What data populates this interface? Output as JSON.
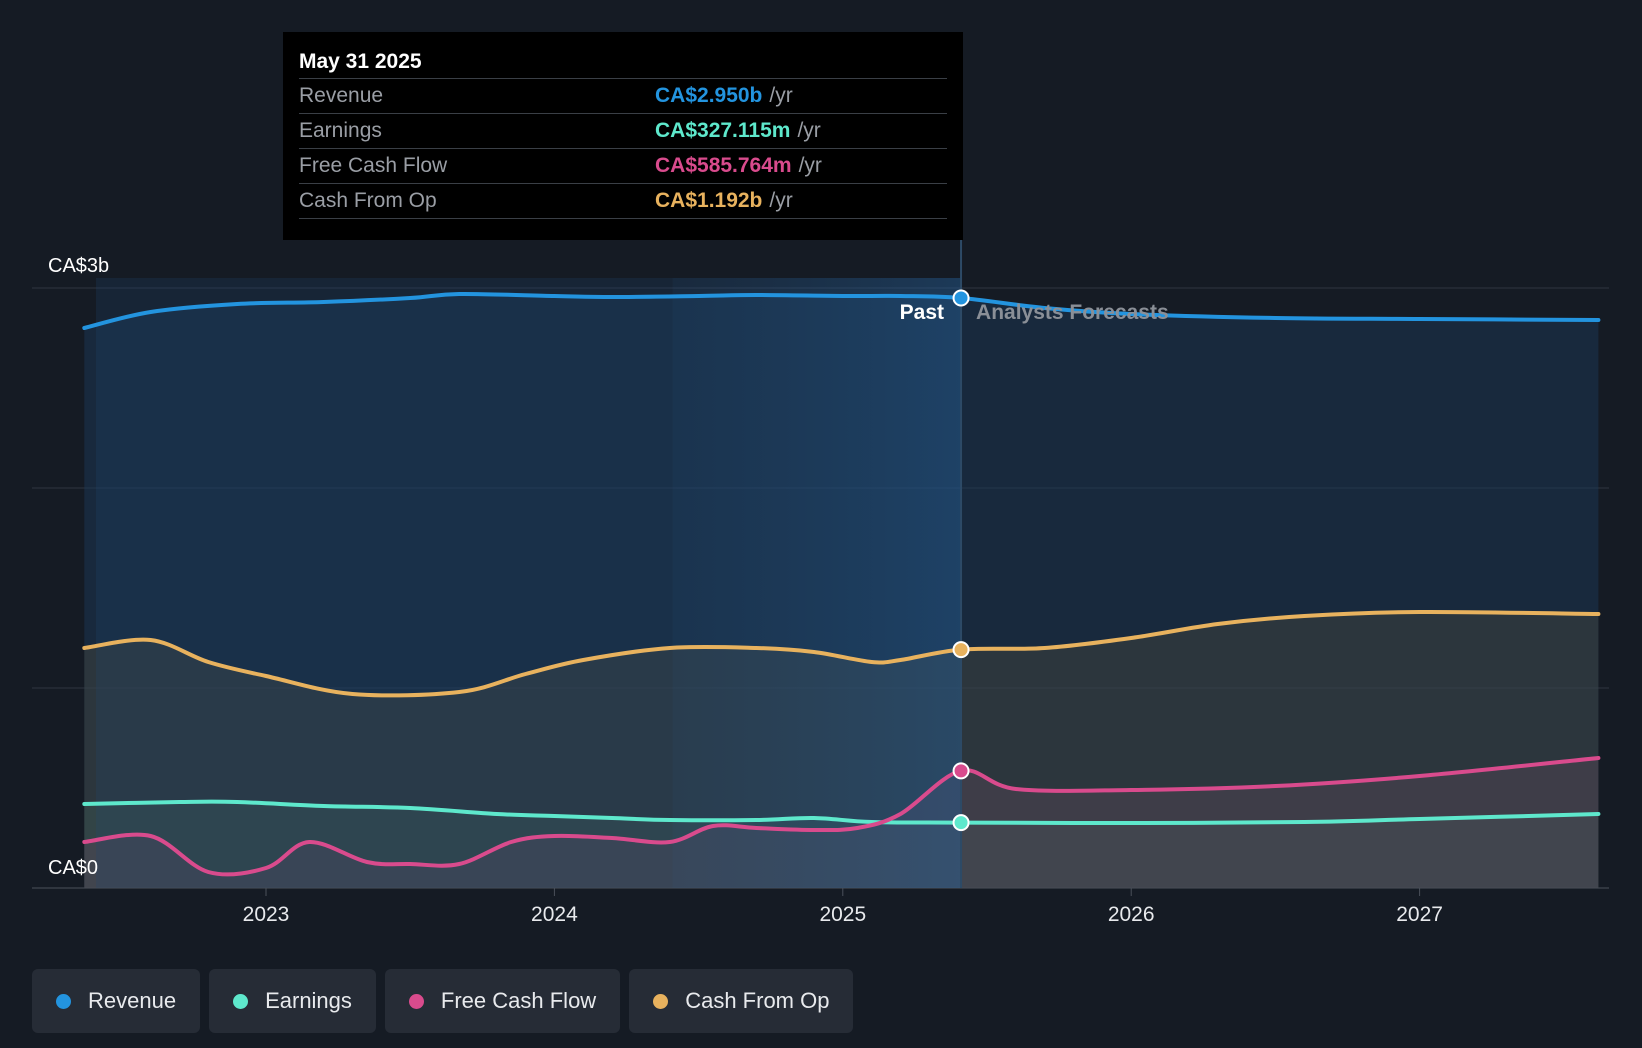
{
  "chart_data": {
    "type": "area",
    "y_unit": "CA$",
    "ylim": [
      0,
      3000000000
    ],
    "y_tick_labels": [
      "CA$0",
      "CA$3b"
    ],
    "x_tick_labels": [
      "2023",
      "2024",
      "2025",
      "2026",
      "2027"
    ],
    "x_range": [
      2022.37,
      2027.62
    ],
    "gridlines": [
      0,
      1000000000,
      2000000000,
      3000000000
    ],
    "past_label": "Past",
    "forecast_label": "Analysts Forecasts",
    "divider_x": 2025.41,
    "highlight_band": [
      2024.41,
      2025.41
    ],
    "series": [
      {
        "name": "Revenue",
        "color": "#2394df",
        "x": [
          2022.37,
          2022.6,
          2022.9,
          2023.2,
          2023.5,
          2023.67,
          2024.0,
          2024.2,
          2024.5,
          2024.7,
          2025.0,
          2025.2,
          2025.41,
          2025.7,
          2026.0,
          2026.5,
          2027.0,
          2027.62
        ],
        "values": [
          2800000000.0,
          2880000000.0,
          2920000000.0,
          2930000000.0,
          2950000000.0,
          2970000000.0,
          2960000000.0,
          2955000000.0,
          2960000000.0,
          2965000000.0,
          2960000000.0,
          2960000000.0,
          2950000000.0,
          2900000000.0,
          2870000000.0,
          2850000000.0,
          2845000000.0,
          2840000000.0
        ]
      },
      {
        "name": "Earnings",
        "color": "#5ee8cc",
        "x": [
          2022.37,
          2022.7,
          2022.9,
          2023.2,
          2023.5,
          2023.8,
          2024.0,
          2024.2,
          2024.4,
          2024.7,
          2024.9,
          2025.1,
          2025.41,
          2026.0,
          2026.6,
          2027.0,
          2027.62
        ],
        "values": [
          420000000.0,
          430000000.0,
          430000000.0,
          410000000.0,
          400000000.0,
          370000000.0,
          360000000.0,
          350000000.0,
          340000000.0,
          340000000.0,
          350000000.0,
          330000000.0,
          327000000.0,
          325000000.0,
          330000000.0,
          345000000.0,
          370000000.0
        ]
      },
      {
        "name": "Free Cash Flow",
        "color": "#d94b8d",
        "x": [
          2022.37,
          2022.6,
          2022.8,
          2023.0,
          2023.15,
          2023.35,
          2023.5,
          2023.67,
          2023.85,
          2024.0,
          2024.2,
          2024.4,
          2024.55,
          2024.7,
          2024.9,
          2025.05,
          2025.2,
          2025.41,
          2025.6,
          2026.0,
          2026.5,
          2027.0,
          2027.62
        ],
        "values": [
          230000000.0,
          260000000.0,
          80000000.0,
          100000000.0,
          230000000.0,
          130000000.0,
          120000000.0,
          120000000.0,
          230000000.0,
          260000000.0,
          250000000.0,
          230000000.0,
          310000000.0,
          300000000.0,
          290000000.0,
          300000000.0,
          370000000.0,
          585764000.0,
          495000000.0,
          490000000.0,
          510000000.0,
          560000000.0,
          650000000.0
        ]
      },
      {
        "name": "Cash From Op",
        "color": "#e8b25e",
        "x": [
          2022.37,
          2022.6,
          2022.8,
          2023.0,
          2023.3,
          2023.67,
          2023.9,
          2024.1,
          2024.4,
          2024.7,
          2024.9,
          2025.1,
          2025.2,
          2025.41,
          2025.7,
          2026.0,
          2026.3,
          2026.6,
          2027.0,
          2027.62
        ],
        "values": [
          1200000000.0,
          1240000000.0,
          1130000000.0,
          1060000000.0,
          970000000.0,
          980000000.0,
          1070000000.0,
          1140000000.0,
          1200000000.0,
          1200000000.0,
          1180000000.0,
          1130000000.0,
          1140000000.0,
          1192000000.0,
          1200000000.0,
          1250000000.0,
          1320000000.0,
          1360000000.0,
          1380000000.0,
          1370000000.0
        ]
      }
    ]
  },
  "tooltip": {
    "date": "May 31 2025",
    "unit": "/yr",
    "rows": [
      {
        "label": "Revenue",
        "value": "CA$2.950b",
        "color": "#2394df"
      },
      {
        "label": "Earnings",
        "value": "CA$327.115m",
        "color": "#5ee8cc"
      },
      {
        "label": "Free Cash Flow",
        "value": "CA$585.764m",
        "color": "#d94b8d"
      },
      {
        "label": "Cash From Op",
        "value": "CA$1.192b",
        "color": "#e8b25e"
      }
    ]
  },
  "legend": [
    {
      "label": "Revenue",
      "color": "#2394df"
    },
    {
      "label": "Earnings",
      "color": "#5ee8cc"
    },
    {
      "label": "Free Cash Flow",
      "color": "#d94b8d"
    },
    {
      "label": "Cash From Op",
      "color": "#e8b25e"
    }
  ]
}
